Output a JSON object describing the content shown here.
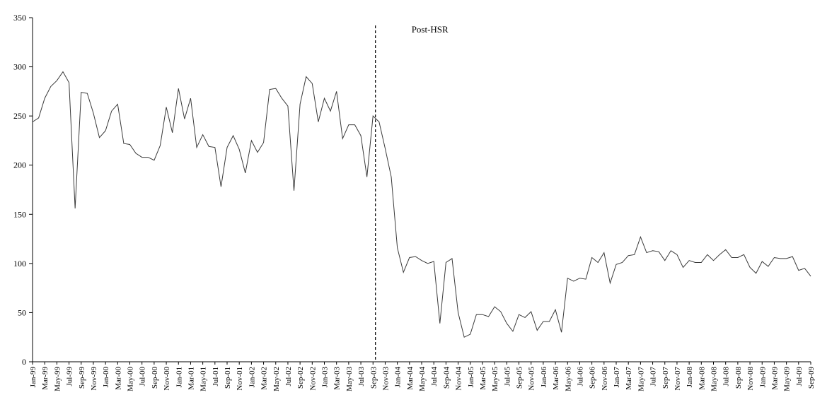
{
  "chart_data": {
    "type": "line",
    "title": "",
    "xlabel": "",
    "ylabel": "",
    "ylim": [
      0,
      350
    ],
    "yticks": [
      0,
      50,
      100,
      150,
      200,
      250,
      300,
      350
    ],
    "grid": false,
    "legend": "none",
    "line_color": "#3a3a3a",
    "x": [
      "Jan-99",
      "Feb-99",
      "Mar-99",
      "Apr-99",
      "May-99",
      "Jun-99",
      "Jul-99",
      "Aug-99",
      "Sep-99",
      "Oct-99",
      "Nov-99",
      "Dec-99",
      "Jan-00",
      "Feb-00",
      "Mar-00",
      "Apr-00",
      "May-00",
      "Jun-00",
      "Jul-00",
      "Aug-00",
      "Sep-00",
      "Oct-00",
      "Nov-00",
      "Dec-00",
      "Jan-01",
      "Feb-01",
      "Mar-01",
      "Apr-01",
      "May-01",
      "Jun-01",
      "Jul-01",
      "Aug-01",
      "Sep-01",
      "Oct-01",
      "Nov-01",
      "Dec-01",
      "Jan-02",
      "Feb-02",
      "Mar-02",
      "Apr-02",
      "May-02",
      "Jun-02",
      "Jul-02",
      "Aug-02",
      "Sep-02",
      "Oct-02",
      "Nov-02",
      "Dec-02",
      "Jan-03",
      "Feb-03",
      "Mar-03",
      "Apr-03",
      "May-03",
      "Jun-03",
      "Jul-03",
      "Aug-03",
      "Sep-03",
      "Oct-03",
      "Nov-03",
      "Dec-03",
      "Jan-04",
      "Feb-04",
      "Mar-04",
      "Apr-04",
      "May-04",
      "Jun-04",
      "Jul-04",
      "Aug-04",
      "Sep-04",
      "Oct-04",
      "Nov-04",
      "Dec-04",
      "Jan-05",
      "Feb-05",
      "Mar-05",
      "Apr-05",
      "May-05",
      "Jun-05",
      "Jul-05",
      "Aug-05",
      "Sep-05",
      "Oct-05",
      "Nov-05",
      "Dec-05",
      "Jan-06",
      "Feb-06",
      "Mar-06",
      "Apr-06",
      "May-06",
      "Jun-06",
      "Jul-06",
      "Aug-06",
      "Sep-06",
      "Oct-06",
      "Nov-06",
      "Dec-06",
      "Jan-07",
      "Feb-07",
      "Mar-07",
      "Apr-07",
      "May-07",
      "Jun-07",
      "Jul-07",
      "Aug-07",
      "Sep-07",
      "Oct-07",
      "Nov-07",
      "Dec-07",
      "Jan-08",
      "Feb-08",
      "Mar-08",
      "Apr-08",
      "May-08",
      "Jun-08",
      "Jul-08",
      "Aug-08",
      "Sep-08",
      "Oct-08",
      "Nov-08",
      "Dec-08",
      "Jan-09",
      "Feb-09",
      "Mar-09",
      "Apr-09",
      "May-09",
      "Jun-09",
      "Jul-09",
      "Aug-09",
      "Sep-09"
    ],
    "tick_labels": [
      "Jan-99",
      "Mar-99",
      "May-99",
      "Jul-99",
      "Sep-99",
      "Nov-99",
      "Jan-00",
      "Mar-00",
      "May-00",
      "Jul-00",
      "Sep-00",
      "Nov-00",
      "Jan-01",
      "Mar-01",
      "May-01",
      "Jul-01",
      "Sep-01",
      "Nov-01",
      "Jan-02",
      "Mar-02",
      "May-02",
      "Jul-02",
      "Sep-02",
      "Nov-02",
      "Jan-03",
      "Mar-03",
      "May-03",
      "Jul-03",
      "Sep-03",
      "Nov-03",
      "Jan-04",
      "Mar-04",
      "May-04",
      "Jul-04",
      "Sep-04",
      "Nov-04",
      "Jan-05",
      "Mar-05",
      "May-05",
      "Jul-05",
      "Sep-05",
      "Nov-05",
      "Jan-06",
      "Mar-06",
      "May-06",
      "Jul-06",
      "Sep-06",
      "Nov-06",
      "Jan-07",
      "Mar-07",
      "May-07",
      "Jul-07",
      "Sep-07",
      "Nov-07",
      "Jan-08",
      "Mar-08",
      "May-08",
      "Jul-08",
      "Sep-08",
      "Nov-08",
      "Jan-09",
      "Mar-09",
      "May-09",
      "Jul-09",
      "Sep-09"
    ],
    "values": [
      244,
      248,
      268,
      280,
      286,
      295,
      284,
      156,
      274,
      273,
      253,
      228,
      235,
      255,
      262,
      222,
      221,
      212,
      208,
      208,
      205,
      220,
      259,
      233,
      278,
      247,
      268,
      218,
      231,
      219,
      218,
      178,
      218,
      230,
      216,
      192,
      225,
      213,
      223,
      277,
      278,
      268,
      260,
      174,
      262,
      290,
      283,
      244,
      268,
      255,
      275,
      227,
      241,
      241,
      230,
      188,
      250,
      244,
      217,
      188,
      116,
      91,
      106,
      107,
      103,
      100,
      102,
      39,
      101,
      105,
      50,
      25,
      28,
      48,
      48,
      46,
      56,
      51,
      39,
      31,
      48,
      45,
      51,
      32,
      41,
      41,
      53,
      30,
      85,
      82,
      85,
      84,
      106,
      101,
      111,
      80,
      99,
      101,
      108,
      109,
      127,
      111,
      113,
      112,
      103,
      113,
      109,
      96,
      103,
      101,
      101,
      109,
      103,
      109,
      114,
      106,
      106,
      109,
      96,
      90,
      102,
      97,
      106,
      105,
      105,
      107,
      93,
      95,
      87
    ],
    "event": {
      "x": "Oct-03",
      "label": "Post-HSR",
      "style": "dashed"
    }
  }
}
